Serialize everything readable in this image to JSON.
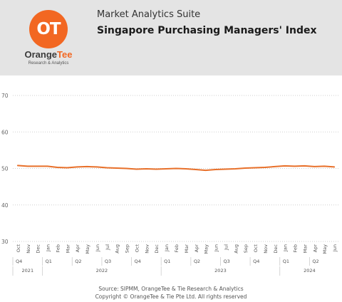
{
  "header": {
    "suite_name": "Market Analytics Suite",
    "report_title": "Singapore Purchasing Managers' Index",
    "logo": {
      "mark": "OT",
      "name_part1": "Orange",
      "name_part2": "Tee",
      "tagline": "Research & Analytics",
      "brand_color": "#f26722"
    }
  },
  "chart_data": {
    "type": "line",
    "title": "",
    "xlabel": "",
    "ylabel": "",
    "ylim": [
      30,
      70
    ],
    "yticks": [
      30,
      40,
      50,
      60,
      70
    ],
    "grid": true,
    "line_color": "#e8702a",
    "months": [
      "Oct",
      "Nov",
      "Dec",
      "Jan",
      "Feb",
      "Mar",
      "Apr",
      "May",
      "Jun",
      "Jul",
      "Aug",
      "Sep",
      "Oct",
      "Nov",
      "Dec",
      "Jan",
      "Feb",
      "Mar",
      "Apr",
      "May",
      "Jun",
      "Jul",
      "Aug",
      "Sep",
      "Oct",
      "Nov",
      "Dec",
      "Jan",
      "Feb",
      "Mar",
      "Apr",
      "May",
      "Jun"
    ],
    "quarters": [
      {
        "label": "Q4",
        "span": 3
      },
      {
        "label": "Q1",
        "span": 3
      },
      {
        "label": "Q2",
        "span": 3
      },
      {
        "label": "Q3",
        "span": 3
      },
      {
        "label": "Q4",
        "span": 3
      },
      {
        "label": "Q1",
        "span": 3
      },
      {
        "label": "Q2",
        "span": 3
      },
      {
        "label": "Q3",
        "span": 3
      },
      {
        "label": "Q4",
        "span": 3
      },
      {
        "label": "Q1",
        "span": 3
      },
      {
        "label": "Q2",
        "span": 3
      }
    ],
    "years": [
      {
        "label": "2021",
        "span": 3
      },
      {
        "label": "2022",
        "span": 12
      },
      {
        "label": "2023",
        "span": 12
      },
      {
        "label": "2024",
        "span": 6
      }
    ],
    "values": [
      50.8,
      50.6,
      50.6,
      50.6,
      50.3,
      50.2,
      50.4,
      50.5,
      50.4,
      50.2,
      50.1,
      50.0,
      49.8,
      49.9,
      49.8,
      49.9,
      50.0,
      49.9,
      49.7,
      49.5,
      49.7,
      49.8,
      49.9,
      50.1,
      50.2,
      50.3,
      50.5,
      50.7,
      50.6,
      50.7,
      50.5,
      50.6,
      50.4
    ]
  },
  "footer": {
    "source": "Source: SIPMM, OrangeTee & Tie Research & Analytics",
    "copyright": "Copyright © OrangeTee & Tie Pte Ltd. All rights reserved"
  }
}
